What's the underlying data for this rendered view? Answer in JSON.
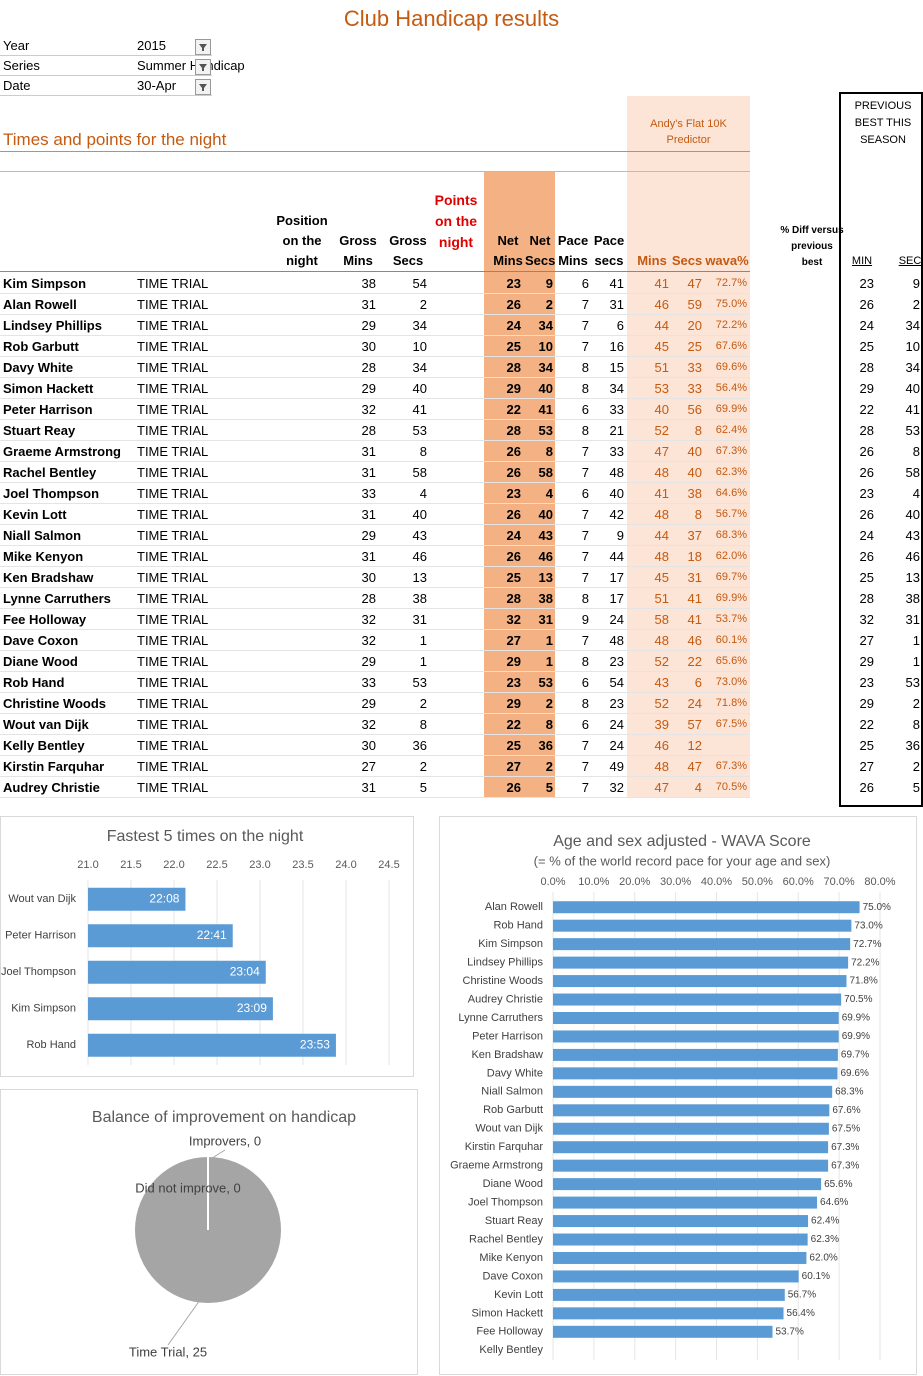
{
  "header": {
    "title": "Club Handicap results"
  },
  "filters": [
    {
      "label": "Year",
      "value": "2015"
    },
    {
      "label": "Series",
      "value": "Summer Handicap"
    },
    {
      "label": "Date",
      "value": "30-Apr"
    }
  ],
  "section_title": "Times and points for the night",
  "predictor_header": "Andy's Flat 10K Predictor",
  "previous_header": "PREVIOUS BEST THIS SEASON",
  "table": {
    "columns": {
      "position": "Position on the night",
      "gross_mins": "Gross Mins",
      "gross_secs": "Gross Secs",
      "points": "Points on the night",
      "net_mins": "Net Mins",
      "net_secs": "Net Secs",
      "pace_mins": "Pace Mins",
      "pace_secs": "Pace secs",
      "pred_mins": "Mins",
      "pred_secs": "Secs",
      "wava": "wava%",
      "diff": "% Diff versus previous best",
      "prev_min": "MIN",
      "prev_sec": "SEC"
    },
    "rows": [
      {
        "name": "Kim Simpson",
        "type": "TIME TRIAL",
        "gross_mins": 38,
        "gross_secs": 54,
        "net_mins": 23,
        "net_secs": 9,
        "pace_mins": 6,
        "pace_secs": 41,
        "pred_mins": 41,
        "pred_secs": 47,
        "wava": "72.7%",
        "prev_min": 23,
        "prev_sec": 9
      },
      {
        "name": "Alan Rowell",
        "type": "TIME TRIAL",
        "gross_mins": 31,
        "gross_secs": 2,
        "net_mins": 26,
        "net_secs": 2,
        "pace_mins": 7,
        "pace_secs": 31,
        "pred_mins": 46,
        "pred_secs": 59,
        "wava": "75.0%",
        "prev_min": 26,
        "prev_sec": 2
      },
      {
        "name": "Lindsey Phillips",
        "type": "TIME TRIAL",
        "gross_mins": 29,
        "gross_secs": 34,
        "net_mins": 24,
        "net_secs": 34,
        "pace_mins": 7,
        "pace_secs": 6,
        "pred_mins": 44,
        "pred_secs": 20,
        "wava": "72.2%",
        "prev_min": 24,
        "prev_sec": 34
      },
      {
        "name": "Rob Garbutt",
        "type": "TIME TRIAL",
        "gross_mins": 30,
        "gross_secs": 10,
        "net_mins": 25,
        "net_secs": 10,
        "pace_mins": 7,
        "pace_secs": 16,
        "pred_mins": 45,
        "pred_secs": 25,
        "wava": "67.6%",
        "prev_min": 25,
        "prev_sec": 10
      },
      {
        "name": "Davy White",
        "type": "TIME TRIAL",
        "gross_mins": 28,
        "gross_secs": 34,
        "net_mins": 28,
        "net_secs": 34,
        "pace_mins": 8,
        "pace_secs": 15,
        "pred_mins": 51,
        "pred_secs": 33,
        "wava": "69.6%",
        "prev_min": 28,
        "prev_sec": 34
      },
      {
        "name": "Simon Hackett",
        "type": "TIME TRIAL",
        "gross_mins": 29,
        "gross_secs": 40,
        "net_mins": 29,
        "net_secs": 40,
        "pace_mins": 8,
        "pace_secs": 34,
        "pred_mins": 53,
        "pred_secs": 33,
        "wava": "56.4%",
        "prev_min": 29,
        "prev_sec": 40
      },
      {
        "name": "Peter Harrison",
        "type": "TIME TRIAL",
        "gross_mins": 32,
        "gross_secs": 41,
        "net_mins": 22,
        "net_secs": 41,
        "pace_mins": 6,
        "pace_secs": 33,
        "pred_mins": 40,
        "pred_secs": 56,
        "wava": "69.9%",
        "prev_min": 22,
        "prev_sec": 41
      },
      {
        "name": "Stuart Reay",
        "type": "TIME TRIAL",
        "gross_mins": 28,
        "gross_secs": 53,
        "net_mins": 28,
        "net_secs": 53,
        "pace_mins": 8,
        "pace_secs": 21,
        "pred_mins": 52,
        "pred_secs": 8,
        "wava": "62.4%",
        "prev_min": 28,
        "prev_sec": 53
      },
      {
        "name": "Graeme Armstrong",
        "type": "TIME TRIAL",
        "gross_mins": 31,
        "gross_secs": 8,
        "net_mins": 26,
        "net_secs": 8,
        "pace_mins": 7,
        "pace_secs": 33,
        "pred_mins": 47,
        "pred_secs": 40,
        "wava": "67.3%",
        "prev_min": 26,
        "prev_sec": 8
      },
      {
        "name": "Rachel Bentley",
        "type": "TIME TRIAL",
        "gross_mins": 31,
        "gross_secs": 58,
        "net_mins": 26,
        "net_secs": 58,
        "pace_mins": 7,
        "pace_secs": 48,
        "pred_mins": 48,
        "pred_secs": 40,
        "wava": "62.3%",
        "prev_min": 26,
        "prev_sec": 58
      },
      {
        "name": "Joel Thompson",
        "type": "TIME TRIAL",
        "gross_mins": 33,
        "gross_secs": 4,
        "net_mins": 23,
        "net_secs": 4,
        "pace_mins": 6,
        "pace_secs": 40,
        "pred_mins": 41,
        "pred_secs": 38,
        "wava": "64.6%",
        "prev_min": 23,
        "prev_sec": 4
      },
      {
        "name": "Kevin Lott",
        "type": "TIME TRIAL",
        "gross_mins": 31,
        "gross_secs": 40,
        "net_mins": 26,
        "net_secs": 40,
        "pace_mins": 7,
        "pace_secs": 42,
        "pred_mins": 48,
        "pred_secs": 8,
        "wava": "56.7%",
        "prev_min": 26,
        "prev_sec": 40
      },
      {
        "name": "Niall Salmon",
        "type": "TIME TRIAL",
        "gross_mins": 29,
        "gross_secs": 43,
        "net_mins": 24,
        "net_secs": 43,
        "pace_mins": 7,
        "pace_secs": 9,
        "pred_mins": 44,
        "pred_secs": 37,
        "wava": "68.3%",
        "prev_min": 24,
        "prev_sec": 43
      },
      {
        "name": "Mike Kenyon",
        "type": "TIME TRIAL",
        "gross_mins": 31,
        "gross_secs": 46,
        "net_mins": 26,
        "net_secs": 46,
        "pace_mins": 7,
        "pace_secs": 44,
        "pred_mins": 48,
        "pred_secs": 18,
        "wava": "62.0%",
        "prev_min": 26,
        "prev_sec": 46
      },
      {
        "name": "Ken Bradshaw",
        "type": "TIME TRIAL",
        "gross_mins": 30,
        "gross_secs": 13,
        "net_mins": 25,
        "net_secs": 13,
        "pace_mins": 7,
        "pace_secs": 17,
        "pred_mins": 45,
        "pred_secs": 31,
        "wava": "69.7%",
        "prev_min": 25,
        "prev_sec": 13
      },
      {
        "name": "Lynne Carruthers",
        "type": "TIME TRIAL",
        "gross_mins": 28,
        "gross_secs": 38,
        "net_mins": 28,
        "net_secs": 38,
        "pace_mins": 8,
        "pace_secs": 17,
        "pred_mins": 51,
        "pred_secs": 41,
        "wava": "69.9%",
        "prev_min": 28,
        "prev_sec": 38
      },
      {
        "name": "Fee Holloway",
        "type": "TIME TRIAL",
        "gross_mins": 32,
        "gross_secs": 31,
        "net_mins": 32,
        "net_secs": 31,
        "pace_mins": 9,
        "pace_secs": 24,
        "pred_mins": 58,
        "pred_secs": 41,
        "wava": "53.7%",
        "prev_min": 32,
        "prev_sec": 31
      },
      {
        "name": "Dave Coxon",
        "type": "TIME TRIAL",
        "gross_mins": 32,
        "gross_secs": 1,
        "net_mins": 27,
        "net_secs": 1,
        "pace_mins": 7,
        "pace_secs": 48,
        "pred_mins": 48,
        "pred_secs": 46,
        "wava": "60.1%",
        "prev_min": 27,
        "prev_sec": 1
      },
      {
        "name": "Diane Wood",
        "type": "TIME TRIAL",
        "gross_mins": 29,
        "gross_secs": 1,
        "net_mins": 29,
        "net_secs": 1,
        "pace_mins": 8,
        "pace_secs": 23,
        "pred_mins": 52,
        "pred_secs": 22,
        "wava": "65.6%",
        "prev_min": 29,
        "prev_sec": 1
      },
      {
        "name": "Rob Hand",
        "type": "TIME TRIAL",
        "gross_mins": 33,
        "gross_secs": 53,
        "net_mins": 23,
        "net_secs": 53,
        "pace_mins": 6,
        "pace_secs": 54,
        "pred_mins": 43,
        "pred_secs": 6,
        "wava": "73.0%",
        "prev_min": 23,
        "prev_sec": 53
      },
      {
        "name": "Christine Woods",
        "type": "TIME TRIAL",
        "gross_mins": 29,
        "gross_secs": 2,
        "net_mins": 29,
        "net_secs": 2,
        "pace_mins": 8,
        "pace_secs": 23,
        "pred_mins": 52,
        "pred_secs": 24,
        "wava": "71.8%",
        "prev_min": 29,
        "prev_sec": 2
      },
      {
        "name": "Wout van Dijk",
        "type": "TIME TRIAL",
        "gross_mins": 32,
        "gross_secs": 8,
        "net_mins": 22,
        "net_secs": 8,
        "pace_mins": 6,
        "pace_secs": 24,
        "pred_mins": 39,
        "pred_secs": 57,
        "wava": "67.5%",
        "prev_min": 22,
        "prev_sec": 8
      },
      {
        "name": "Kelly Bentley",
        "type": "TIME TRIAL",
        "gross_mins": 30,
        "gross_secs": 36,
        "net_mins": 25,
        "net_secs": 36,
        "pace_mins": 7,
        "pace_secs": 24,
        "pred_mins": 46,
        "pred_secs": 12,
        "wava": null,
        "prev_min": 25,
        "prev_sec": 36
      },
      {
        "name": "Kirstin Farquhar",
        "type": "TIME TRIAL",
        "gross_mins": 27,
        "gross_secs": 2,
        "net_mins": 27,
        "net_secs": 2,
        "pace_mins": 7,
        "pace_secs": 49,
        "pred_mins": 48,
        "pred_secs": 47,
        "wava": "67.3%",
        "prev_min": 27,
        "prev_sec": 2
      },
      {
        "name": "Audrey Christie",
        "type": "TIME TRIAL",
        "gross_mins": 31,
        "gross_secs": 5,
        "net_mins": 26,
        "net_secs": 5,
        "pace_mins": 7,
        "pace_secs": 32,
        "pred_mins": 47,
        "pred_secs": 4,
        "wava": "70.5%",
        "prev_min": 26,
        "prev_sec": 5
      }
    ]
  },
  "chart_data": [
    {
      "type": "bar",
      "orientation": "horizontal",
      "title": "Fastest 5 times on the night",
      "categories": [
        "Wout van Dijk",
        "Peter Harrison",
        "Joel Thompson",
        "Kim Simpson",
        "Rob Hand"
      ],
      "values": [
        22.133,
        22.683,
        23.067,
        23.15,
        23.883
      ],
      "value_labels": [
        "22:08",
        "22:41",
        "23:04",
        "23:09",
        "23:53"
      ],
      "color": "#5b9bd5",
      "xlim": [
        21,
        24.5
      ],
      "xticks": [
        {
          "value": 21,
          "label": "21.0"
        },
        21.5,
        {
          "value": 22,
          "label": "22.0"
        },
        22.5,
        {
          "value": 23,
          "label": "23.0"
        },
        23.5,
        {
          "value": 24,
          "label": "24.0"
        },
        24.5
      ],
      "grid": true
    },
    {
      "type": "pie",
      "title": "Balance of improvement on handicap",
      "categories": [
        "Improvers",
        "Did not improve",
        "Time Trial"
      ],
      "values": [
        0,
        0,
        25
      ],
      "value_labels": [
        "Improvers, 0",
        "Did not improve, 0",
        "Time Trial, 25"
      ],
      "color": "#a5a5a5"
    },
    {
      "type": "bar",
      "orientation": "horizontal",
      "title": "Age and sex adjusted - WAVA Score",
      "subtitle": "(= % of the world record pace for your age and sex)",
      "categories": [
        "Alan Rowell",
        "Rob Hand",
        "Kim Simpson",
        "Lindsey Phillips",
        "Christine Woods",
        "Audrey Christie",
        "Lynne Carruthers",
        "Peter Harrison",
        "Ken Bradshaw",
        "Davy White",
        "Niall Salmon",
        "Rob Garbutt",
        "Wout van Dijk",
        "Kirstin Farquhar",
        "Graeme Armstrong",
        "Diane Wood",
        "Joel Thompson",
        "Stuart Reay",
        "Rachel Bentley",
        "Mike Kenyon",
        "Dave Coxon",
        "Kevin Lott",
        "Simon Hackett",
        "Fee Holloway",
        "Kelly Bentley"
      ],
      "values": [
        75.0,
        73.0,
        72.7,
        72.2,
        71.8,
        70.5,
        69.9,
        69.9,
        69.7,
        69.6,
        68.3,
        67.6,
        67.5,
        67.3,
        67.3,
        65.6,
        64.6,
        62.4,
        62.3,
        62.0,
        60.1,
        56.7,
        56.4,
        53.7,
        null
      ],
      "value_labels": [
        "75.0%",
        "73.0%",
        "72.7%",
        "72.2%",
        "71.8%",
        "70.5%",
        "69.9%",
        "69.9%",
        "69.7%",
        "69.6%",
        "68.3%",
        "67.6%",
        "67.5%",
        "67.3%",
        "67.3%",
        "65.6%",
        "64.6%",
        "62.4%",
        "62.3%",
        "62.0%",
        "60.1%",
        "56.7%",
        "56.4%",
        "53.7%",
        null
      ],
      "color": "#5b9bd5",
      "xlim": [
        0,
        80
      ],
      "xticks": [
        {
          "value": 0,
          "label": "0.0%"
        },
        {
          "value": 10,
          "label": "10.0%"
        },
        {
          "value": 20,
          "label": "20.0%"
        },
        {
          "value": 30,
          "label": "30.0%"
        },
        {
          "value": 40,
          "label": "40.0%"
        },
        {
          "value": 50,
          "label": "50.0%"
        },
        {
          "value": 60,
          "label": "60.0%"
        },
        {
          "value": 70,
          "label": "70.0%"
        },
        {
          "value": 80,
          "label": "80.0%"
        }
      ],
      "grid": true
    }
  ]
}
